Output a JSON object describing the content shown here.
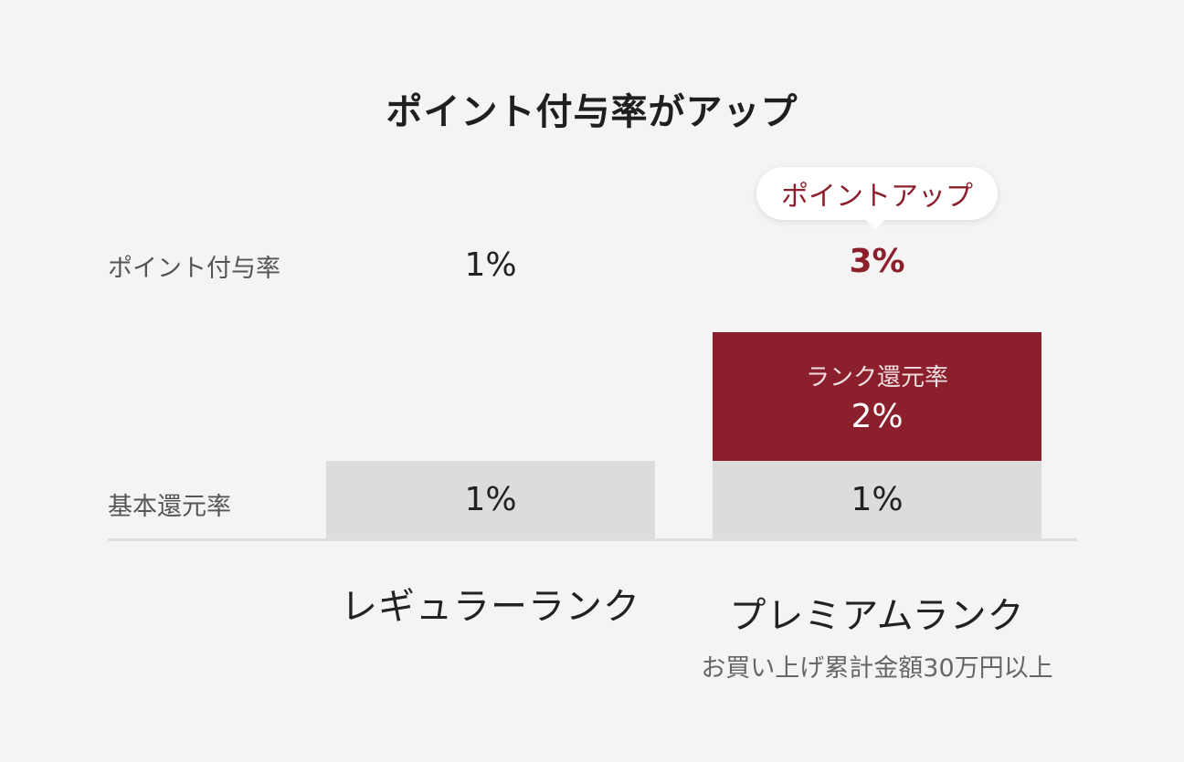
{
  "chart_data": {
    "type": "bar",
    "title": "ポイント付与率がアップ",
    "row_labels": {
      "total": "ポイント付与率",
      "base": "基本還元率"
    },
    "categories": [
      "レギュラーランク",
      "プレミアムランク"
    ],
    "category_notes": [
      "",
      "お買い上げ累計金額30万円以上"
    ],
    "series": [
      {
        "name": "基本還元率",
        "values": [
          1,
          1
        ],
        "labels": [
          "1%",
          "1%"
        ],
        "color": "#dcdcdc"
      },
      {
        "name": "ランク還元率",
        "values": [
          0,
          2
        ],
        "labels": [
          "",
          "2%"
        ],
        "color": "#8c1f2c"
      }
    ],
    "totals": [
      "1%",
      "3%"
    ],
    "highlight": {
      "badge": "ポイントアップ",
      "color": "#8c1f2c"
    },
    "stacked": true
  }
}
